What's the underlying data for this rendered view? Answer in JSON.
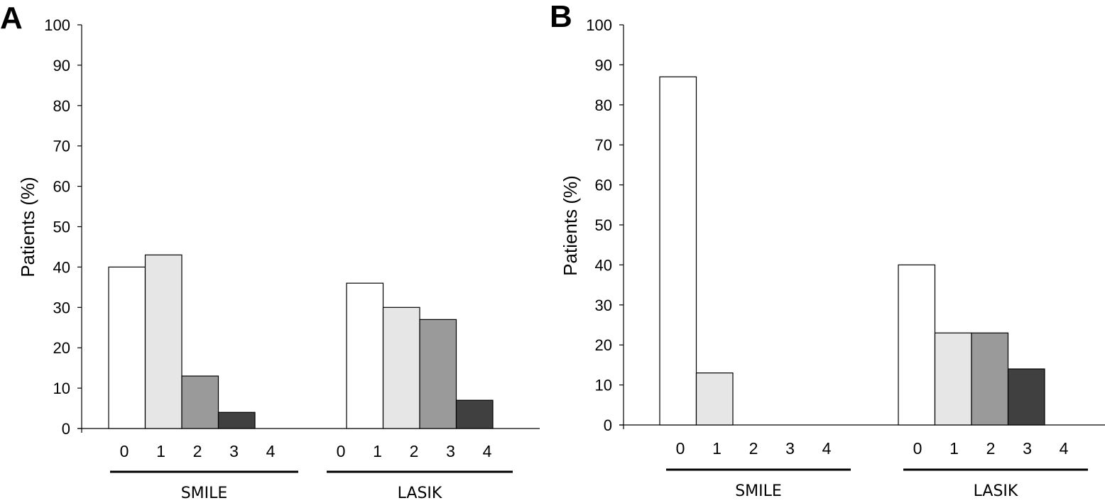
{
  "chart_data": [
    {
      "type": "bar",
      "panel": "A",
      "ylabel": "Patients (%)",
      "ylim": [
        0,
        100
      ],
      "yticks": [
        "0",
        "10",
        "20",
        "30",
        "40",
        "50",
        "60",
        "70",
        "80",
        "90",
        "100"
      ],
      "categories": [
        "0",
        "1",
        "2",
        "3",
        "4"
      ],
      "groups": [
        {
          "label": "SMILE",
          "values": [
            40,
            43,
            13,
            4,
            0
          ]
        },
        {
          "label": "LASIK",
          "values": [
            36,
            30,
            27,
            7,
            0
          ]
        }
      ],
      "colors": [
        "#ffffff",
        "#e6e6e6",
        "#9a9a9a",
        "#404040",
        "#1a1a1a"
      ]
    },
    {
      "type": "bar",
      "panel": "B",
      "ylabel": "Patients (%)",
      "ylim": [
        0,
        100
      ],
      "yticks": [
        "0",
        "10",
        "20",
        "30",
        "40",
        "50",
        "60",
        "70",
        "80",
        "90",
        "100"
      ],
      "categories": [
        "0",
        "1",
        "2",
        "3",
        "4"
      ],
      "groups": [
        {
          "label": "SMILE",
          "values": [
            87,
            13,
            0,
            0,
            0
          ]
        },
        {
          "label": "LASIK",
          "values": [
            40,
            23,
            23,
            14,
            0
          ]
        }
      ],
      "colors": [
        "#ffffff",
        "#e6e6e6",
        "#9a9a9a",
        "#404040",
        "#1a1a1a"
      ]
    }
  ]
}
